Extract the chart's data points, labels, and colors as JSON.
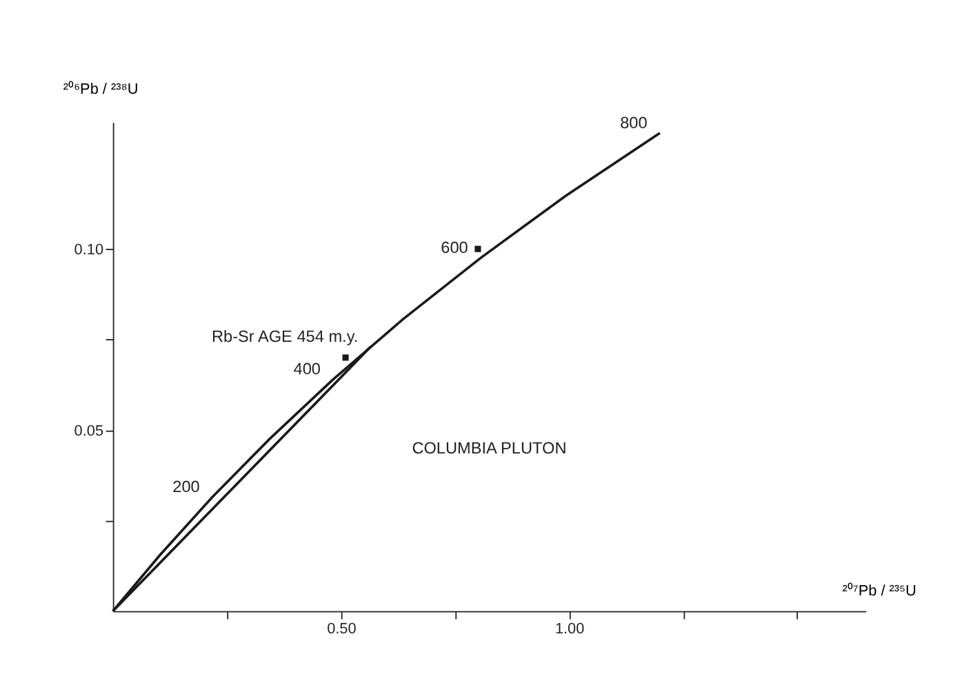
{
  "chart_data": {
    "type": "line",
    "xlabel": "²⁰⁷Pb / ²³⁵U",
    "ylabel": "²⁰⁶Pb / ²³⁸U",
    "series": [
      {
        "color": "#1a1a1a",
        "x": [
          0,
          0.104,
          0.218,
          0.344,
          0.483,
          0.636,
          0.806,
          0.993,
          1.199
        ],
        "values": [
          0,
          0.0156,
          0.0315,
          0.0476,
          0.064,
          0.0806,
          0.0975,
          0.1147,
          0.132
        ]
      },
      {
        "color": "#1a1a1a",
        "x": [
          0,
          0.565
        ],
        "values": [
          0,
          0.073
        ]
      },
      {
        "type": "scatter",
        "marker": "square",
        "color": "#1a1a1a",
        "x": [
          0.51,
          0.8
        ],
        "values": [
          0.07,
          0.1
        ]
      }
    ],
    "xlim": [
      0,
      1.65
    ],
    "ylim": [
      0,
      0.135
    ],
    "xticks": [
      {
        "value": 0.25,
        "label": null
      },
      {
        "value": 0.5,
        "label": "0.50"
      },
      {
        "value": 0.75,
        "label": null
      },
      {
        "value": 1.0,
        "label": "1.00"
      },
      {
        "value": 1.25,
        "label": null
      },
      {
        "value": 1.5,
        "label": null
      }
    ],
    "yticks": [
      {
        "value": 0.025,
        "label": null
      },
      {
        "value": 0.05,
        "label": "0.05"
      },
      {
        "value": 0.075,
        "label": null
      },
      {
        "value": 0.1,
        "label": "0.10"
      }
    ],
    "annotations": [
      {
        "text": "200",
        "x": 0.218,
        "y": 0.0315
      },
      {
        "text": "400",
        "x": 0.483,
        "y": 0.064
      },
      {
        "text": "600",
        "x": 0.806,
        "y": 0.0975
      },
      {
        "text": "800",
        "x": 1.199,
        "y": 0.132
      },
      {
        "text": "Rb-Sr AGE 454 m.y.",
        "x": 0.565,
        "y": 0.073
      },
      "COLUMBIA PLUTON"
    ],
    "grid": false,
    "line_style": "solid"
  }
}
